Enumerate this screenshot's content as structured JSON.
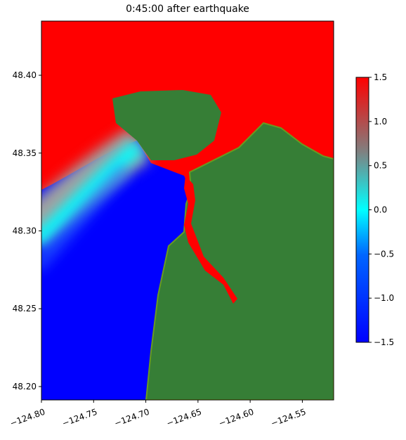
{
  "chart_data": {
    "type": "map",
    "title": "0:45:00 after earthquake",
    "xlim": [
      -124.8,
      -124.52
    ],
    "ylim": [
      48.1914,
      48.4348
    ],
    "xticks": [
      {
        "value": -124.8,
        "label": "−124.80"
      },
      {
        "value": -124.75,
        "label": "−124.75"
      },
      {
        "value": -124.7,
        "label": "−124.70"
      },
      {
        "value": -124.65,
        "label": "−124.65"
      },
      {
        "value": -124.6,
        "label": "−124.60"
      },
      {
        "value": -124.55,
        "label": "−124.55"
      }
    ],
    "yticks": [
      {
        "value": 48.2,
        "label": "48.20"
      },
      {
        "value": 48.25,
        "label": "48.25"
      },
      {
        "value": 48.3,
        "label": "48.30"
      },
      {
        "value": 48.35,
        "label": "48.35"
      },
      {
        "value": 48.4,
        "label": "48.40"
      }
    ],
    "colorbar": {
      "lim": [
        -1.5,
        1.5
      ],
      "ticks": [
        {
          "value": -1.5,
          "label": "−1.5"
        },
        {
          "value": -1.0,
          "label": "−1.0"
        },
        {
          "value": -0.5,
          "label": "−0.5"
        },
        {
          "value": 0,
          "label": "0.0"
        },
        0.5,
        {
          "value": 1.0,
          "label": "1.0"
        },
        1.5
      ]
    }
  }
}
